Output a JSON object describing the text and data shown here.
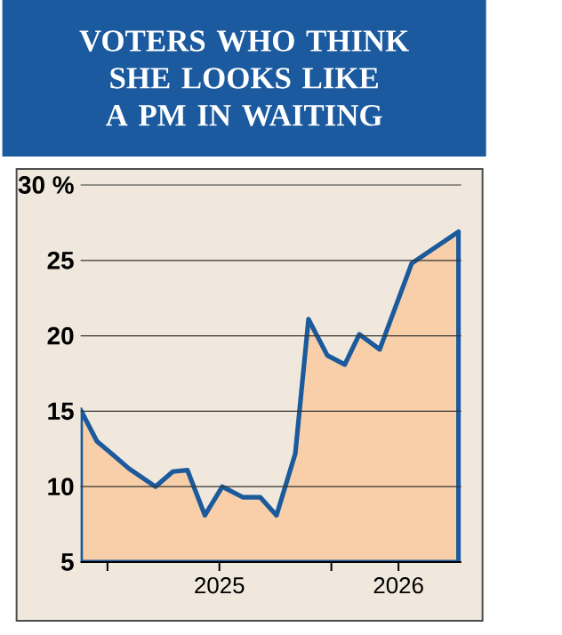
{
  "chart_data": {
    "type": "area",
    "title": "VOTERS WHO THINK SHE LOOKS LIKE A PM IN WAITING",
    "x": [
      2024.88,
      2024.953,
      2025.018,
      2025.096,
      2025.214,
      2025.292,
      2025.357,
      2025.435,
      2025.513,
      2025.604,
      2025.682,
      2025.755,
      2025.839,
      2025.898,
      2025.982,
      2026.06,
      2026.125,
      2026.216,
      2026.359,
      2026.438,
      2026.568
    ],
    "values": [
      15.1,
      13.0,
      12.2,
      11.2,
      10.0,
      11.0,
      11.1,
      8.1,
      10.0,
      9.3,
      9.3,
      8.1,
      12.2,
      21.1,
      18.7,
      18.1,
      20.1,
      19.1,
      24.8,
      25.6,
      26.9
    ],
    "color": "#f8cfa8",
    "xlim": [
      2024.88,
      2026.58
    ],
    "xticks": [
      {
        "value": 2025,
        "label": null
      },
      {
        "value": 2025.5,
        "label": "2025"
      },
      {
        "value": 2026,
        "label": null
      },
      {
        "value": 2026.3,
        "label": "2026"
      }
    ],
    "ylim": [
      5,
      30
    ],
    "yticks": [
      5,
      10,
      15,
      20,
      25,
      {
        "value": 30,
        "label": "30 %"
      }
    ],
    "grid": "y"
  }
}
